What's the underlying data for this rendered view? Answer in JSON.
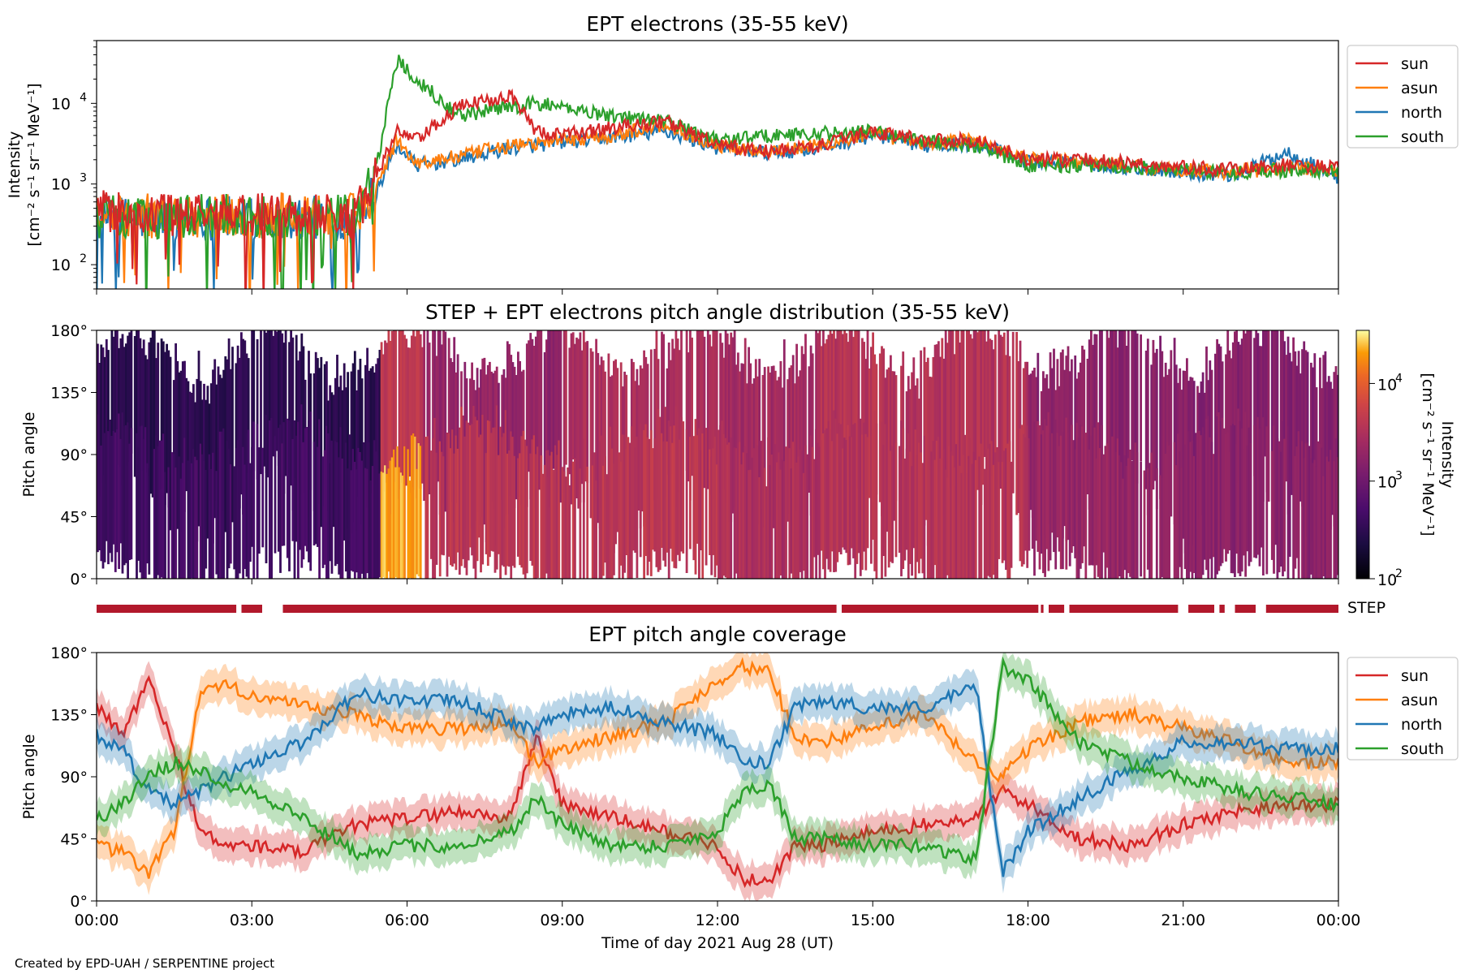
{
  "figure": {
    "credit": "Created by EPD-UAH / SERPENTINE project",
    "xlabel": "Time of day 2021 Aug 28 (UT)",
    "xticks": [
      "00:00",
      "03:00",
      "06:00",
      "09:00",
      "12:00",
      "15:00",
      "18:00",
      "21:00",
      "00:00"
    ],
    "series_colors": {
      "sun": "#d62728",
      "asun": "#ff7f0e",
      "north": "#1f77b4",
      "south": "#2ca02c"
    }
  },
  "chart_data": [
    {
      "id": "intensity",
      "type": "line",
      "title": "EPT electrons (35-55 keV)",
      "ylabel_line1": "Intensity",
      "ylabel_line2": "[cm⁻² s⁻¹ sr⁻¹ MeV⁻¹]",
      "yscale": "log",
      "ylim": [
        50,
        60000
      ],
      "yticks": [
        {
          "base": "10",
          "exp": "2",
          "value": 100
        },
        {
          "base": "10",
          "exp": "3",
          "value": 1000
        },
        {
          "base": "10",
          "exp": "4",
          "value": 10000
        }
      ],
      "xlim_hours": [
        0,
        24
      ],
      "legend": [
        "sun",
        "asun",
        "north",
        "south"
      ],
      "legend_position": "outside-right",
      "series": [
        {
          "name": "sun",
          "x": [
            0,
            1,
            2,
            3,
            4,
            5,
            5.4,
            5.8,
            6.2,
            7,
            8,
            8.5,
            9,
            10,
            11,
            12,
            13,
            14,
            15,
            16,
            17,
            18,
            19,
            20,
            21,
            22,
            23,
            24
          ],
          "y": [
            450,
            420,
            430,
            420,
            430,
            420,
            1200,
            4500,
            3500,
            9000,
            13000,
            4500,
            4000,
            5000,
            6000,
            3000,
            2500,
            3000,
            4500,
            3500,
            3500,
            2000,
            2000,
            1800,
            1600,
            1500,
            1700,
            1600
          ]
        },
        {
          "name": "asun",
          "x": [
            0,
            1,
            2,
            3,
            4,
            5,
            5.4,
            5.8,
            6.2,
            7,
            8,
            8.5,
            9,
            10,
            11,
            12,
            13,
            14,
            15,
            16,
            17,
            18,
            19,
            20,
            21,
            22,
            23,
            24
          ],
          "y": [
            400,
            400,
            410,
            400,
            410,
            400,
            900,
            3500,
            1800,
            2200,
            3000,
            3200,
            3500,
            4000,
            5500,
            3000,
            2600,
            3000,
            4200,
            3200,
            3500,
            2000,
            1900,
            1700,
            1500,
            1400,
            1600,
            1500
          ]
        },
        {
          "name": "north",
          "x": [
            0,
            1,
            2,
            3,
            4,
            5,
            5.4,
            5.8,
            6.2,
            7,
            8,
            8.5,
            9,
            10,
            11,
            12,
            13,
            14,
            15,
            16,
            17,
            18,
            19,
            20,
            21,
            22,
            23,
            24
          ],
          "y": [
            380,
            370,
            380,
            370,
            380,
            370,
            800,
            3000,
            1700,
            2000,
            2800,
            3000,
            3300,
            3800,
            4500,
            2800,
            2400,
            2800,
            4000,
            3000,
            3200,
            1900,
            1800,
            1600,
            1400,
            1300,
            2500,
            1200
          ]
        },
        {
          "name": "south",
          "x": [
            0,
            1,
            2,
            3,
            4,
            5,
            5.4,
            5.8,
            6.2,
            7,
            8,
            8.5,
            9,
            10,
            11,
            12,
            13,
            14,
            15,
            16,
            17,
            18,
            19,
            20,
            21,
            22,
            23,
            24
          ],
          "y": [
            400,
            390,
            400,
            390,
            400,
            390,
            1500,
            35000,
            20000,
            7000,
            9000,
            10000,
            9000,
            7000,
            6000,
            3500,
            4000,
            4200,
            4500,
            3500,
            3000,
            1700,
            1700,
            1600,
            1500,
            1400,
            1500,
            1400
          ]
        }
      ]
    },
    {
      "id": "pad",
      "type": "heatmap",
      "title": "STEP + EPT electrons pitch angle distribution (35-55 keV)",
      "ylabel": "Pitch angle",
      "ylim": [
        0,
        180
      ],
      "yticks": [
        "0°",
        "45°",
        "90°",
        "135°",
        "180°"
      ],
      "colorbar": {
        "label_line1": "Intensity",
        "label_line2": "[cm⁻² s⁻¹ sr⁻¹ MeV⁻¹]",
        "scale": "log",
        "range": [
          100,
          35000
        ],
        "ticks": [
          {
            "base": "10",
            "exp": "2",
            "value": 100
          },
          {
            "base": "10",
            "exp": "3",
            "value": 1000
          },
          {
            "base": "10",
            "exp": "4",
            "value": 10000
          }
        ],
        "colormap": "inferno"
      },
      "segments": [
        {
          "x0": 0,
          "x1": 5.5,
          "upper_level": 300,
          "lower_level": 450
        },
        {
          "x0": 5.5,
          "x1": 6.3,
          "upper_level": 4500,
          "lower_level": 22000
        },
        {
          "x0": 6.3,
          "x1": 9,
          "upper_level": 1800,
          "lower_level": 4000
        },
        {
          "x0": 9,
          "x1": 12,
          "upper_level": 3000,
          "lower_level": 4000
        },
        {
          "x0": 12,
          "x1": 14,
          "upper_level": 2500,
          "lower_level": 3000
        },
        {
          "x0": 14,
          "x1": 18,
          "upper_level": 3500,
          "lower_level": 3500
        },
        {
          "x0": 18,
          "x1": 21,
          "upper_level": 1600,
          "lower_level": 2000
        },
        {
          "x0": 21,
          "x1": 24,
          "upper_level": 1500,
          "lower_level": 1600
        }
      ]
    },
    {
      "id": "step",
      "type": "bar",
      "label": "STEP",
      "coverage_hours": [
        [
          0,
          2.7
        ],
        [
          2.8,
          3.2
        ],
        [
          3.6,
          14.3
        ],
        [
          14.4,
          18.2
        ],
        [
          18.25,
          18.3
        ],
        [
          18.4,
          18.7
        ],
        [
          18.8,
          20.9
        ],
        [
          21.1,
          21.6
        ],
        [
          21.7,
          21.8
        ],
        [
          22.0,
          22.4
        ],
        [
          22.6,
          24
        ]
      ]
    },
    {
      "id": "coverage",
      "type": "line",
      "title": "EPT pitch angle coverage",
      "ylabel": "Pitch angle",
      "ylim": [
        0,
        180
      ],
      "yticks": [
        "0°",
        "45°",
        "90°",
        "135°",
        "180°"
      ],
      "band_halfwidth_deg": 12,
      "legend": [
        "sun",
        "asun",
        "north",
        "south"
      ],
      "legend_position": "outside-right",
      "series": [
        {
          "name": "sun",
          "x": [
            0,
            0.5,
            1,
            1.5,
            2,
            2.5,
            3,
            4,
            5,
            6,
            7,
            8,
            8.5,
            9,
            10,
            11,
            12,
            12.5,
            13,
            13.5,
            14,
            15,
            16,
            17,
            17.5,
            18,
            19,
            20,
            21,
            22,
            23,
            24
          ],
          "y": [
            140,
            120,
            160,
            110,
            50,
            40,
            40,
            35,
            55,
            60,
            65,
            60,
            120,
            70,
            60,
            50,
            40,
            15,
            15,
            40,
            40,
            50,
            55,
            60,
            80,
            70,
            45,
            40,
            55,
            65,
            70,
            70
          ]
        },
        {
          "name": "asun",
          "x": [
            0,
            0.5,
            1,
            1.5,
            2,
            2.5,
            3,
            4,
            5,
            6,
            7,
            8,
            8.5,
            9,
            10,
            11,
            12,
            12.5,
            13,
            13.5,
            14,
            15,
            16,
            17,
            17.5,
            18,
            19,
            20,
            21,
            22,
            23,
            24
          ],
          "y": [
            40,
            35,
            20,
            50,
            150,
            155,
            150,
            140,
            135,
            125,
            125,
            130,
            100,
            110,
            120,
            130,
            160,
            170,
            165,
            120,
            115,
            125,
            135,
            100,
            90,
            110,
            130,
            135,
            125,
            115,
            100,
            100
          ]
        },
        {
          "name": "north",
          "x": [
            0,
            0.5,
            1,
            1.5,
            2,
            2.5,
            3,
            4,
            5,
            6,
            7,
            8,
            8.5,
            9,
            10,
            11,
            12,
            12.5,
            13,
            13.5,
            14,
            15,
            16,
            17,
            17.5,
            18,
            19,
            20,
            21,
            22,
            23,
            24
          ],
          "y": [
            120,
            110,
            80,
            70,
            80,
            90,
            100,
            115,
            150,
            145,
            145,
            130,
            125,
            135,
            140,
            130,
            120,
            100,
            100,
            140,
            145,
            140,
            140,
            155,
            20,
            50,
            75,
            95,
            115,
            115,
            110,
            110
          ]
        },
        {
          "name": "south",
          "x": [
            0,
            0.5,
            1,
            1.5,
            2,
            2.5,
            3,
            4,
            5,
            6,
            7,
            8,
            8.5,
            9,
            10,
            11,
            12,
            12.5,
            13,
            13.5,
            14,
            15,
            16,
            17,
            17.5,
            18,
            19,
            20,
            21,
            22,
            23,
            24
          ],
          "y": [
            60,
            70,
            90,
            100,
            95,
            85,
            80,
            60,
            35,
            40,
            40,
            50,
            75,
            55,
            40,
            40,
            50,
            80,
            85,
            45,
            45,
            40,
            40,
            30,
            170,
            160,
            115,
            100,
            90,
            80,
            75,
            70
          ]
        }
      ]
    }
  ]
}
